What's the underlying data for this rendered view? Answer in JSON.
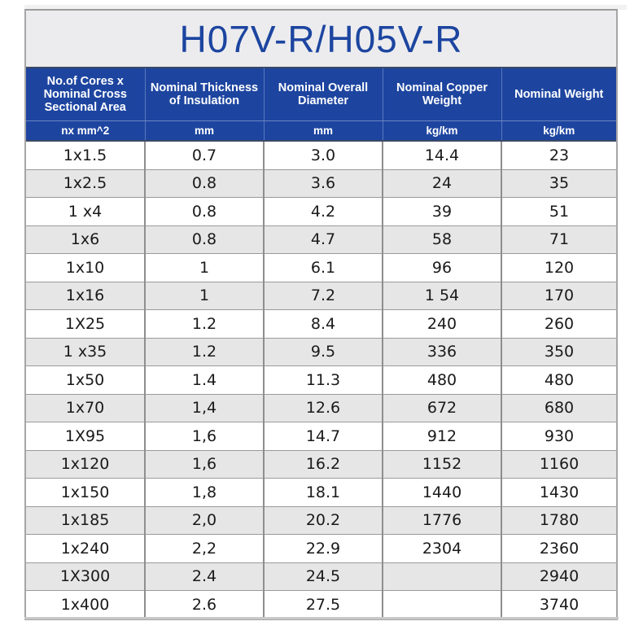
{
  "title": "H07V-R/H05V-R",
  "colors": {
    "title_text": "#1c45a0",
    "header_bg": "#1d45a0",
    "header_text": "#ffffff",
    "title_bg": "#ececee",
    "row_alt_bg": "#e6e6e6"
  },
  "headers": [
    "No.of Cores x Nominal Cross Sectional Area",
    "Nominal Thickness of Insulation",
    "Nominal Overall Diameter",
    "Nominal Copper Weight",
    "Nominal Weight"
  ],
  "units": [
    "nx mm^2",
    "mm",
    "mm",
    "kg/km",
    "kg/km"
  ],
  "rows": [
    [
      "1x1.5",
      "0.7",
      "3.0",
      "14.4",
      "23"
    ],
    [
      "1x2.5",
      "0.8",
      "3.6",
      "24",
      "35"
    ],
    [
      "1 x4",
      "0.8",
      "4.2",
      "39",
      "51"
    ],
    [
      "1x6",
      "0.8",
      "4.7",
      "58",
      "71"
    ],
    [
      "1x10",
      "1",
      "6.1",
      "96",
      "120"
    ],
    [
      "1x16",
      "1",
      "7.2",
      "1 54",
      "170"
    ],
    [
      "1X25",
      "1.2",
      "8.4",
      "240",
      "260"
    ],
    [
      "1 x35",
      "1.2",
      "9.5",
      "336",
      "350"
    ],
    [
      "1x50",
      "1.4",
      "11.3",
      "480",
      "480"
    ],
    [
      "1x70",
      "1,4",
      "12.6",
      "672",
      "680"
    ],
    [
      "1X95",
      "1,6",
      "14.7",
      "912",
      "930"
    ],
    [
      "1x120",
      "1,6",
      "16.2",
      "1152",
      "1160"
    ],
    [
      "1x150",
      "1,8",
      "18.1",
      "1440",
      "1430"
    ],
    [
      "1x185",
      "2,0",
      "20.2",
      "1776",
      "1780"
    ],
    [
      "1x240",
      "2,2",
      "22.9",
      "2304",
      "2360"
    ],
    [
      "1X300",
      "2.4",
      "24.5",
      "",
      "2940"
    ],
    [
      "1x400",
      "2.6",
      "27.5",
      "",
      "3740"
    ]
  ]
}
